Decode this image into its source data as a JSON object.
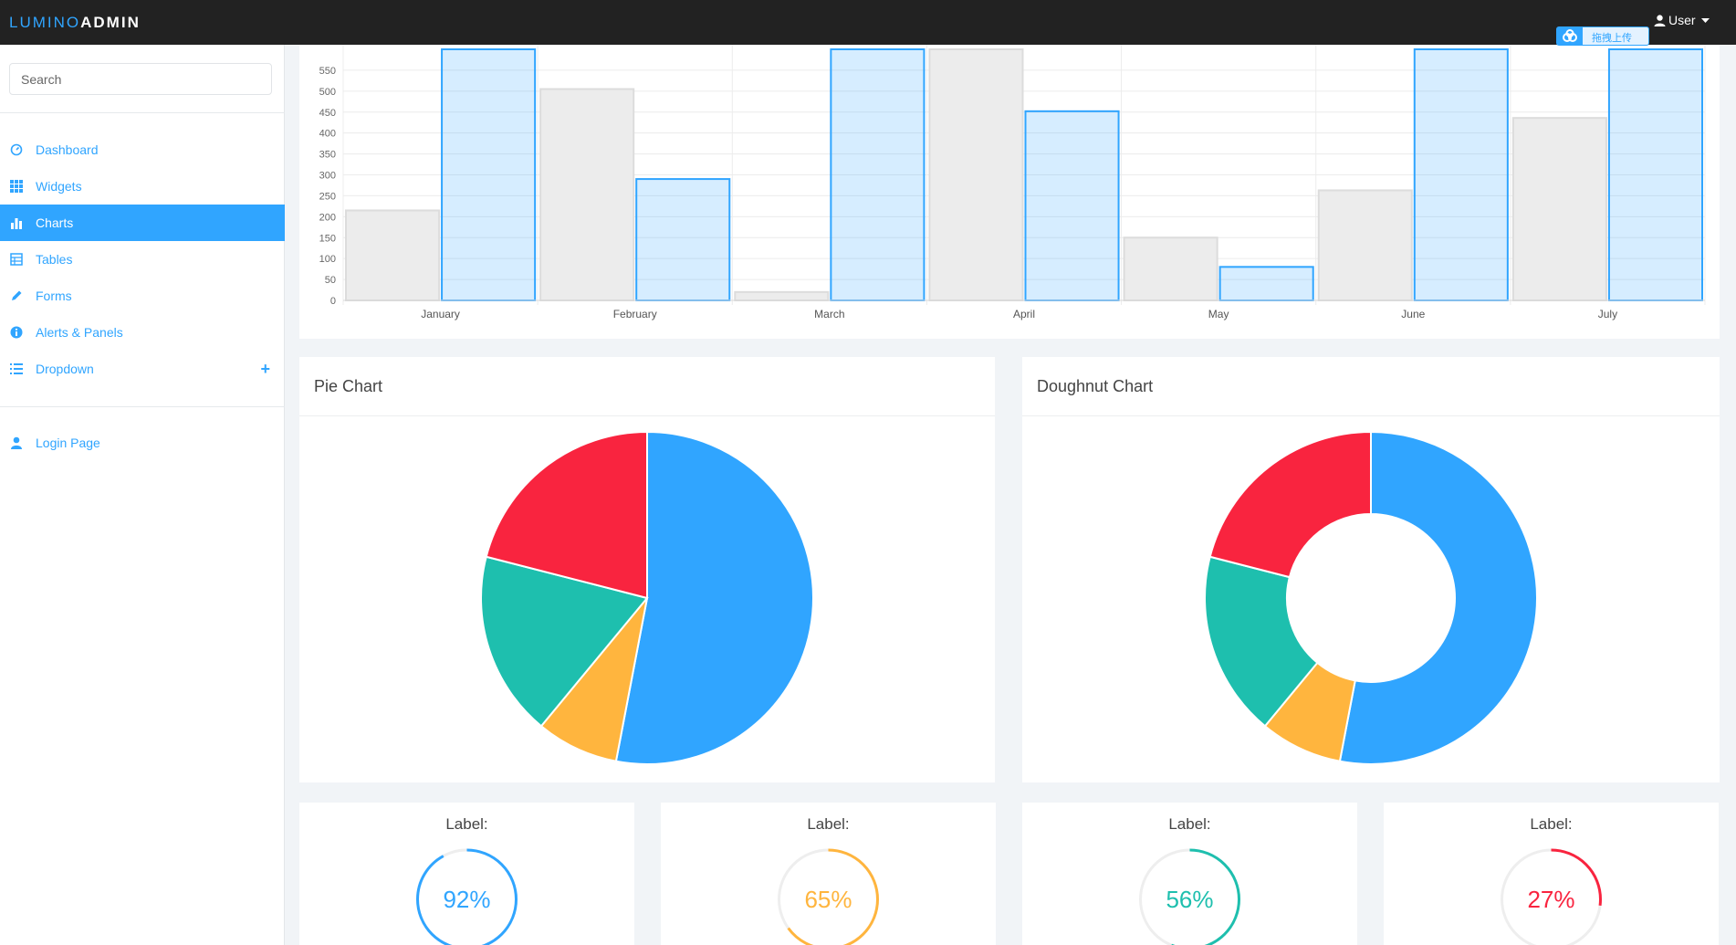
{
  "header": {
    "brand_part1": "LUMINO",
    "brand_part2": "ADMIN",
    "user_label": "User",
    "upload_label": "拖拽上传"
  },
  "sidebar": {
    "search_placeholder": "Search",
    "items": [
      {
        "label": "Dashboard",
        "icon": "dashboard-icon"
      },
      {
        "label": "Widgets",
        "icon": "grid-icon"
      },
      {
        "label": "Charts",
        "icon": "bar-chart-icon",
        "active": true
      },
      {
        "label": "Tables",
        "icon": "table-icon"
      },
      {
        "label": "Forms",
        "icon": "pencil-icon"
      },
      {
        "label": "Alerts & Panels",
        "icon": "info-icon"
      },
      {
        "label": "Dropdown",
        "icon": "list-icon"
      }
    ],
    "login_label": "Login Page"
  },
  "colors": {
    "blue": "#30a5ff",
    "orange": "#ffb53e",
    "teal": "#1ebfae",
    "red": "#f9243f",
    "gray_bar": "#e9e9e9"
  },
  "pie_panel": {
    "title": "Pie Chart"
  },
  "doughnut_panel": {
    "title": "Doughnut Chart"
  },
  "chart_data": [
    {
      "type": "bar",
      "categories": [
        "January",
        "February",
        "March",
        "April",
        "May",
        "June",
        "July"
      ],
      "series": [
        {
          "values": [
            215,
            505,
            20,
            600,
            150,
            263,
            436
          ],
          "color": "#e9e9e9"
        },
        {
          "values": [
            600,
            290,
            600,
            452,
            80,
            600,
            600
          ],
          "color": "#30a5ff"
        }
      ],
      "yticks": [
        0,
        50,
        100,
        150,
        200,
        250,
        300,
        350,
        400,
        450,
        500,
        550
      ],
      "ylim": [
        0,
        600
      ],
      "grid": true
    },
    {
      "type": "pie",
      "labels": [
        "Blue",
        "Orange",
        "Teal",
        "Red"
      ],
      "values": [
        53,
        8,
        18,
        21
      ],
      "colors": [
        "#30a5ff",
        "#ffb53e",
        "#1ebfae",
        "#f9243f"
      ]
    },
    {
      "type": "pie",
      "donut": true,
      "labels": [
        "Blue",
        "Orange",
        "Teal",
        "Red"
      ],
      "values": [
        53,
        8,
        18,
        21
      ],
      "colors": [
        "#30a5ff",
        "#ffb53e",
        "#1ebfae",
        "#f9243f"
      ]
    }
  ],
  "rings": [
    {
      "label": "Label:",
      "value_text": "92%",
      "fraction": 0.92,
      "color": "#30a5ff"
    },
    {
      "label": "Label:",
      "value_text": "65%",
      "fraction": 0.65,
      "color": "#ffb53e"
    },
    {
      "label": "Label:",
      "value_text": "56%",
      "fraction": 0.56,
      "color": "#1ebfae"
    },
    {
      "label": "Label:",
      "value_text": "27%",
      "fraction": 0.27,
      "color": "#f9243f"
    }
  ]
}
